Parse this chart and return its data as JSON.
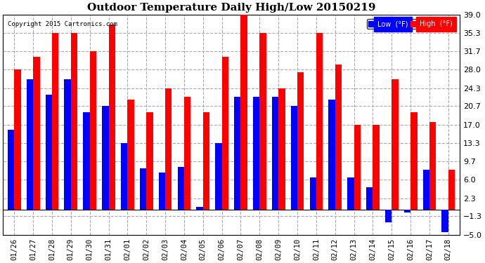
{
  "title": "Outdoor Temperature Daily High/Low 20150219",
  "copyright": "Copyright 2015 Cartronics.com",
  "legend_low": "Low  (°F)",
  "legend_high": "High  (°F)",
  "dates": [
    "01/26",
    "01/27",
    "01/28",
    "01/29",
    "01/30",
    "01/31",
    "02/01",
    "02/02",
    "02/03",
    "02/04",
    "02/05",
    "02/06",
    "02/07",
    "02/08",
    "02/09",
    "02/10",
    "02/11",
    "02/12",
    "02/13",
    "02/14",
    "02/15",
    "02/16",
    "02/17",
    "02/18"
  ],
  "highs": [
    28.0,
    30.5,
    35.3,
    35.3,
    31.7,
    37.0,
    22.0,
    19.5,
    24.3,
    22.5,
    19.5,
    30.5,
    39.0,
    35.3,
    24.3,
    27.5,
    35.3,
    29.0,
    17.0,
    17.0,
    26.0,
    19.5,
    17.5,
    8.0
  ],
  "lows": [
    16.0,
    26.0,
    23.0,
    26.0,
    19.5,
    20.7,
    13.3,
    8.3,
    7.5,
    8.5,
    0.5,
    13.3,
    22.5,
    22.5,
    22.5,
    20.7,
    6.5,
    22.0,
    6.5,
    4.5,
    -2.5,
    -0.5,
    8.0,
    -4.5
  ],
  "ylim_min": -5.0,
  "ylim_max": 39.0,
  "yticks": [
    39.0,
    35.3,
    31.7,
    28.0,
    24.3,
    20.7,
    17.0,
    13.3,
    9.7,
    6.0,
    2.3,
    -1.3,
    -5.0
  ],
  "bar_width": 0.35,
  "high_color": "#ff0000",
  "low_color": "#0000ff",
  "bg_color": "#ffffff",
  "grid_color": "#aaaaaa",
  "title_fontsize": 11,
  "tick_fontsize": 7.5,
  "ytick_fontsize": 8
}
